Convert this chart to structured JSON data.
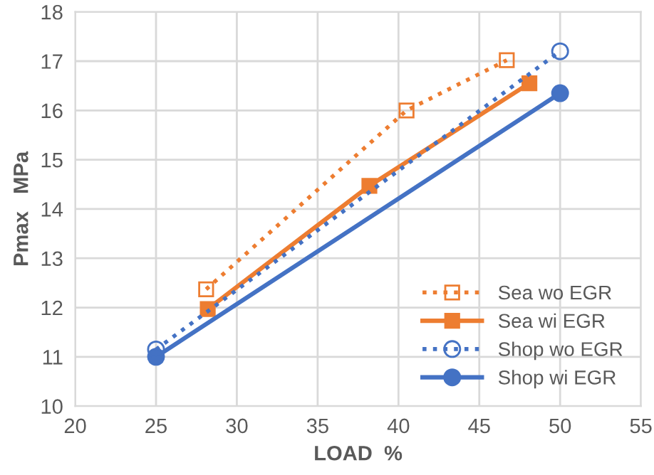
{
  "chart_data": {
    "type": "line",
    "xlabel": "LOAD  %",
    "ylabel": "Pmax   MPa",
    "xlim": [
      20,
      55
    ],
    "ylim": [
      10,
      18
    ],
    "xticks": [
      20,
      25,
      30,
      35,
      40,
      45,
      50,
      55
    ],
    "yticks": [
      10,
      11,
      12,
      13,
      14,
      15,
      16,
      17,
      18
    ],
    "grid": true,
    "legend": "bottom right",
    "series": [
      {
        "name": "Sea wo EGR",
        "color": "#ed7d31",
        "marker": "square",
        "line_style": "dotted",
        "x": [
          28.1,
          40.5,
          46.7
        ],
        "values": [
          12.37,
          16.0,
          17.02
        ]
      },
      {
        "name": "Sea wi EGR",
        "color": "#ed7d31",
        "marker": "square",
        "line_style": "solid",
        "x": [
          28.2,
          38.2,
          48.1
        ],
        "values": [
          11.97,
          14.47,
          16.55
        ]
      },
      {
        "name": "Shop wo EGR",
        "color": "#4472c4",
        "marker": "circle",
        "line_style": "dotted",
        "x": [
          25,
          50
        ],
        "values": [
          11.15,
          17.2
        ]
      },
      {
        "name": "Shop wi EGR",
        "color": "#4472c4",
        "marker": "circle",
        "line_style": "solid",
        "x": [
          25,
          50
        ],
        "values": [
          11.0,
          16.35
        ]
      }
    ]
  }
}
